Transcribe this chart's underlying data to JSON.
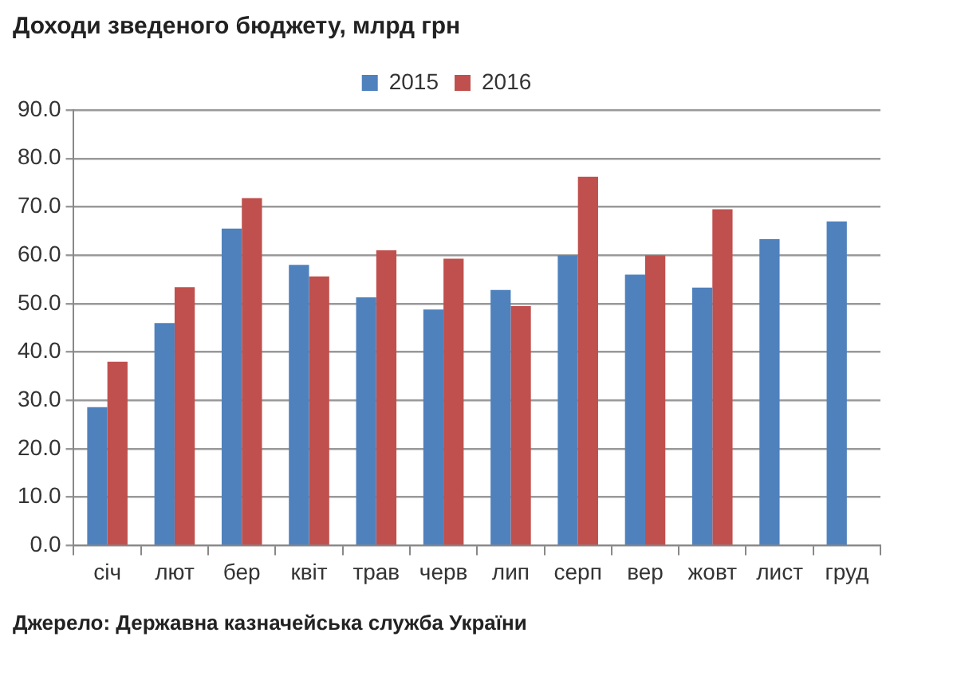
{
  "chart_data": {
    "type": "bar",
    "title": "Доходи зведеного бюджету, млрд грн",
    "categories": [
      "січ",
      "лют",
      "бер",
      "квіт",
      "трав",
      "черв",
      "лип",
      "серп",
      "вер",
      "жовт",
      "лист",
      "груд"
    ],
    "series": [
      {
        "name": "2015",
        "color": "#4f81bd",
        "values": [
          28.6,
          46.0,
          65.5,
          58.0,
          51.3,
          48.8,
          52.8,
          60.0,
          56.0,
          53.3,
          63.3,
          67.0
        ]
      },
      {
        "name": "2016",
        "color": "#c0504d",
        "values": [
          38.0,
          53.4,
          71.8,
          55.6,
          61.0,
          59.3,
          49.5,
          76.2,
          60.0,
          69.5,
          null,
          null
        ]
      }
    ],
    "ylim": [
      0,
      90
    ],
    "yticks": [
      {
        "value": 0,
        "label": "0.0"
      },
      {
        "value": 10,
        "label": "10.0"
      },
      {
        "value": 20,
        "label": "20.0"
      },
      {
        "value": 30,
        "label": "30.0"
      },
      {
        "value": 40,
        "label": "40.0"
      },
      {
        "value": 50,
        "label": "50.0"
      },
      {
        "value": 60,
        "label": "60.0"
      },
      {
        "value": 70,
        "label": "70.0"
      },
      {
        "value": 80,
        "label": "80.0"
      },
      {
        "value": 90,
        "label": "90.0"
      }
    ],
    "grid": "y",
    "legend": "top",
    "annotations": [
      "Джерело: Державна казначейська служба України"
    ]
  }
}
